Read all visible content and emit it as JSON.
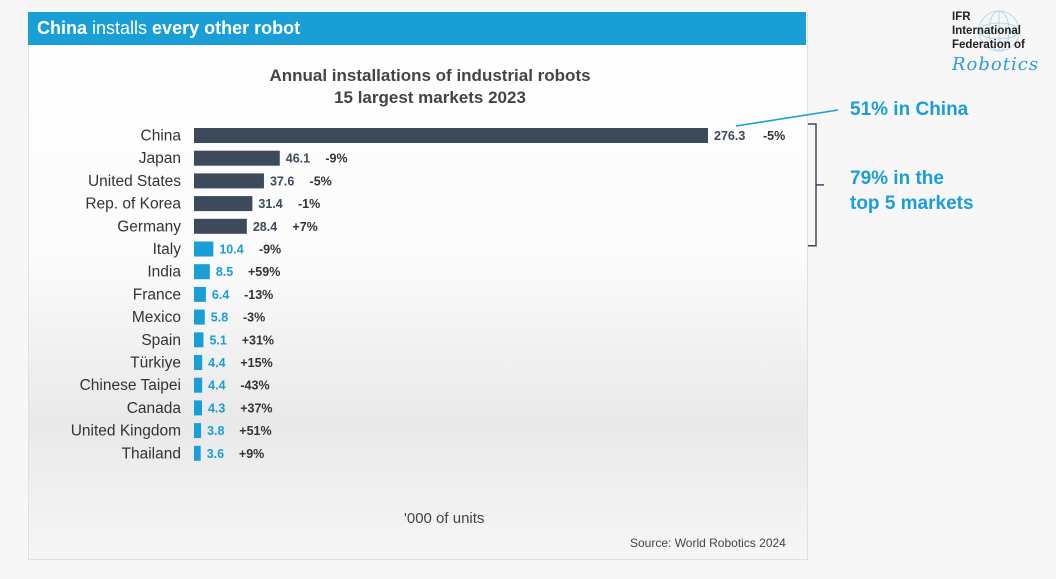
{
  "header": {
    "title_bold1": "China",
    "title_mid": " installs ",
    "title_bold2": "every other robot"
  },
  "logo": {
    "line1": "IFR",
    "line2": "International",
    "line3": "Federation of",
    "script": "Robotics"
  },
  "chart_data": {
    "type": "bar",
    "orientation": "horizontal",
    "title": "Annual installations of industrial robots",
    "subtitle": "15 largest markets 2023",
    "xlabel": "'000 of units",
    "source": "Source: World Robotics 2024",
    "categories": [
      "China",
      "Japan",
      "United States",
      "Rep. of Korea",
      "Germany",
      "Italy",
      "India",
      "France",
      "Mexico",
      "Spain",
      "Türkiye",
      "Chinese Taipei",
      "Canada",
      "United Kingdom",
      "Thailand"
    ],
    "values": [
      276.3,
      46.1,
      37.6,
      31.4,
      28.4,
      10.4,
      8.5,
      6.4,
      5.8,
      5.1,
      4.4,
      4.4,
      4.3,
      3.8,
      3.6
    ],
    "value_labels": [
      "276.3",
      "46.1",
      "37.6",
      "31.4",
      "28.4",
      "10.4",
      "8.5",
      "6.4",
      "5.8",
      "5.1",
      "4.4",
      "4.4",
      "4.3",
      "3.8",
      "3.6"
    ],
    "change_labels": [
      "-5%",
      "-9%",
      "-5%",
      "-1%",
      "+7%",
      "-9%",
      "+59%",
      "-13%",
      "-3%",
      "+31%",
      "+15%",
      "-43%",
      "+37%",
      "+51%",
      "+9%"
    ],
    "top_group_size": 5,
    "colors": {
      "top": "#3d4a5c",
      "rest": "#1a9ed6",
      "top_label": "#3d4a5c",
      "rest_label": "#1a9ed6"
    },
    "xlim": [
      0,
      276.3
    ]
  },
  "callouts": {
    "china_share": "51% in China",
    "top5_line1": "79% in the",
    "top5_line2": "top 5 markets"
  }
}
